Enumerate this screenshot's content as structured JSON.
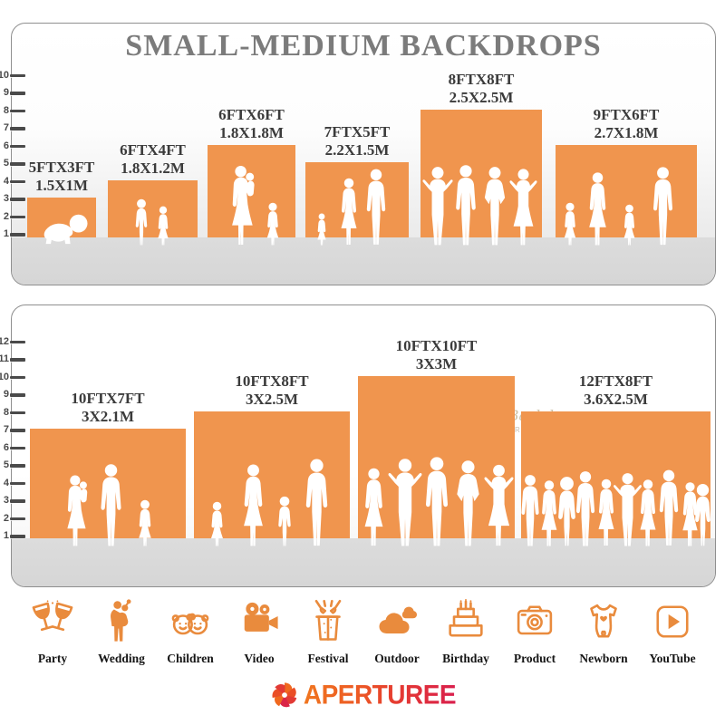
{
  "title": "SMALL-MEDIUM BACKDROPS",
  "colors": {
    "backdrop_orange": "#F0954E",
    "icon_orange": "#E98B3D",
    "title_gray": "#7B7B7B",
    "label_dark": "#3B3B3B",
    "logo_gradient_start": "#F0761F",
    "logo_gradient_end": "#D91F4D"
  },
  "top_panel": {
    "ruler_min": 1,
    "ruler_max": 10,
    "backdrops": [
      {
        "size_ft": "5FTX3FT",
        "size_m": "1.5X1M",
        "width_ft": 5,
        "height_ft": 3,
        "figures": [
          "crawling-baby"
        ]
      },
      {
        "size_ft": "6FTX4FT",
        "size_m": "1.8X1.2M",
        "width_ft": 6,
        "height_ft": 4,
        "figures": [
          "boy",
          "girl"
        ]
      },
      {
        "size_ft": "6FTX6FT",
        "size_m": "1.8X1.8M",
        "width_ft": 6,
        "height_ft": 6,
        "figures": [
          "mother-holding-child",
          "girl"
        ]
      },
      {
        "size_ft": "7FTX5FT",
        "size_m": "2.2X1.5M",
        "width_ft": 7,
        "height_ft": 5,
        "figures": [
          "toddler",
          "woman",
          "man"
        ]
      },
      {
        "size_ft": "8FTX8FT",
        "size_m": "2.5X2.5M",
        "width_ft": 8,
        "height_ft": 8,
        "figures": [
          "man-posing",
          "man",
          "man-hands-on-hips",
          "woman-posing"
        ]
      },
      {
        "size_ft": "9FTX6FT",
        "size_m": "2.7X1.8M",
        "width_ft": 9,
        "height_ft": 6,
        "figures": [
          "girl",
          "woman",
          "girl",
          "man"
        ]
      }
    ]
  },
  "bottom_panel": {
    "ruler_min": 1,
    "ruler_max": 12,
    "watermark": {
      "line1": "Aperturee Backdrop",
      "line2": "WWW.APERTUREE.COM"
    },
    "backdrops": [
      {
        "size_ft": "10FTX7FT",
        "size_m": "3X2.1M",
        "width_ft": 10,
        "height_ft": 7,
        "figures": [
          "mother-holding-child",
          "man",
          "girl"
        ]
      },
      {
        "size_ft": "10FTX8FT",
        "size_m": "3X2.5M",
        "width_ft": 10,
        "height_ft": 8,
        "figures": [
          "girl",
          "woman",
          "boy",
          "man"
        ]
      },
      {
        "size_ft": "10FTX10FT",
        "size_m": "3X3M",
        "width_ft": 10,
        "height_ft": 10,
        "figures": [
          "woman",
          "man-posing",
          "man",
          "man-hands-on-hips",
          "woman-posing"
        ]
      },
      {
        "size_ft": "12FTX8FT",
        "size_m": "3.6X2.5M",
        "width_ft": 12,
        "height_ft": 8,
        "figures": [
          "crowd-of-people"
        ]
      }
    ]
  },
  "categories": [
    {
      "label": "Party",
      "icon": "party-icon"
    },
    {
      "label": "Wedding",
      "icon": "wedding-icon"
    },
    {
      "label": "Children",
      "icon": "children-icon"
    },
    {
      "label": "Video",
      "icon": "video-icon"
    },
    {
      "label": "Festival",
      "icon": "festival-icon"
    },
    {
      "label": "Outdoor",
      "icon": "outdoor-icon"
    },
    {
      "label": "Birthday",
      "icon": "birthday-icon"
    },
    {
      "label": "Product",
      "icon": "product-icon"
    },
    {
      "label": "Newborn",
      "icon": "newborn-icon"
    },
    {
      "label": "YouTube",
      "icon": "youtube-icon"
    }
  ],
  "logo": {
    "text": "APERTUREE"
  }
}
